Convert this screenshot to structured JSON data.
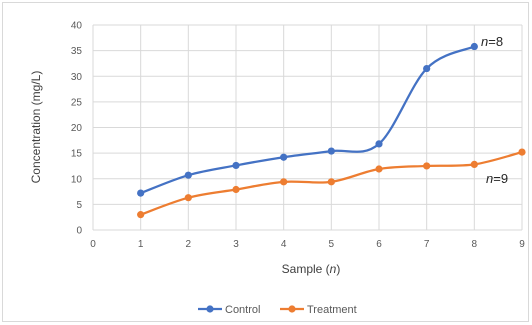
{
  "chart_data": {
    "type": "line",
    "xlabel": "Sample (n)",
    "ylabel": "Concentration (mg/L)",
    "xlim": [
      0,
      9
    ],
    "ylim": [
      0,
      40
    ],
    "x_ticks": [
      0,
      1,
      2,
      3,
      4,
      5,
      6,
      7,
      8,
      9
    ],
    "y_ticks": [
      0,
      5,
      10,
      15,
      20,
      25,
      30,
      35,
      40
    ],
    "grid": "vertical and horizontal",
    "legend_position": "bottom",
    "smooth_lines": true,
    "series": [
      {
        "name": "Control",
        "color": "#4472c4",
        "x": [
          1,
          2,
          3,
          4,
          5,
          6,
          7,
          8
        ],
        "values": [
          7.2,
          10.7,
          12.6,
          14.2,
          15.4,
          16.8,
          31.5,
          35.8
        ]
      },
      {
        "name": "Treatment",
        "color": "#ed7d31",
        "x": [
          1,
          2,
          3,
          4,
          5,
          6,
          7,
          8,
          9
        ],
        "values": [
          3.0,
          6.3,
          7.9,
          9.4,
          9.4,
          11.9,
          12.5,
          12.8,
          15.2
        ]
      }
    ],
    "annotations": [
      {
        "text_var": "n",
        "text_rest": "=8",
        "series": "Control"
      },
      {
        "text_var": "n",
        "text_rest": "=9",
        "series": "Treatment"
      }
    ]
  }
}
